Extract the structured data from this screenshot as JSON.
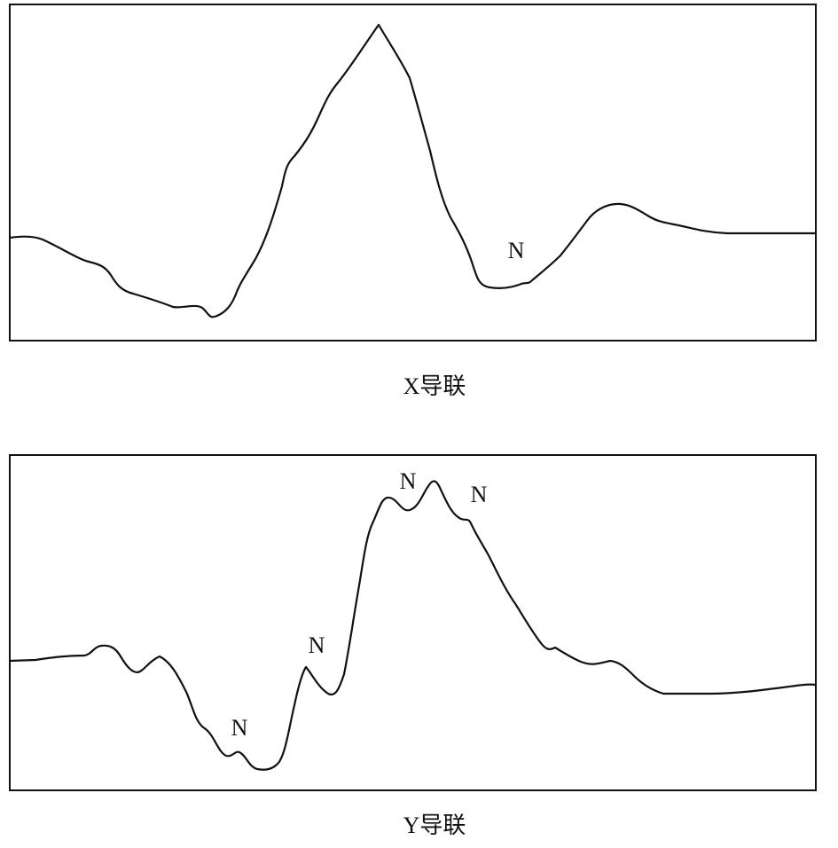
{
  "panels": [
    {
      "caption": "X导联",
      "labels": [
        "N"
      ]
    },
    {
      "caption": "Y导联",
      "labels": [
        "N",
        "N",
        "N",
        "N"
      ]
    }
  ]
}
